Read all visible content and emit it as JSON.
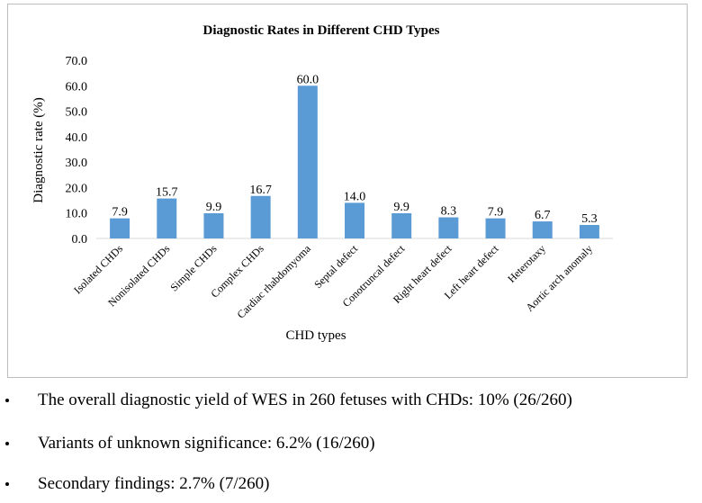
{
  "chart_data": {
    "type": "bar",
    "title": "Diagnostic Rates in Different CHD Types",
    "xlabel": "CHD types",
    "ylabel": "Diagnostic rate (%)",
    "ylim": [
      0,
      70
    ],
    "yticks": [
      "0.0",
      "10.0",
      "20.0",
      "30.0",
      "40.0",
      "50.0",
      "60.0",
      "70.0"
    ],
    "categories": [
      "Isolated CHDs",
      "Nonisolated CHDs",
      "Simple CHDs",
      "Complex CHDs",
      "Cardiac rhabdomyoma",
      "Septal defect",
      "Conotruncal defect",
      "Right heart defect",
      "Left heart defect",
      "Heterotaxy",
      "Aortic arch anomaly"
    ],
    "values": [
      7.9,
      15.7,
      9.9,
      16.7,
      60.0,
      14.0,
      9.9,
      8.3,
      7.9,
      6.7,
      5.3
    ],
    "value_labels": [
      "7.9",
      "15.7",
      "9.9",
      "16.7",
      "60.0",
      "14.0",
      "9.9",
      "8.3",
      "7.9",
      "6.7",
      "5.3"
    ],
    "bar_color": "#5b9bd5",
    "grid": false,
    "legend": "none"
  },
  "bullets": [
    "The overall diagnostic yield of WES in 260 fetuses with CHDs: 10% (26/260)",
    "Variants of unknown significance: 6.2% (16/260)",
    "Secondary findings: 2.7% (7/260)"
  ]
}
